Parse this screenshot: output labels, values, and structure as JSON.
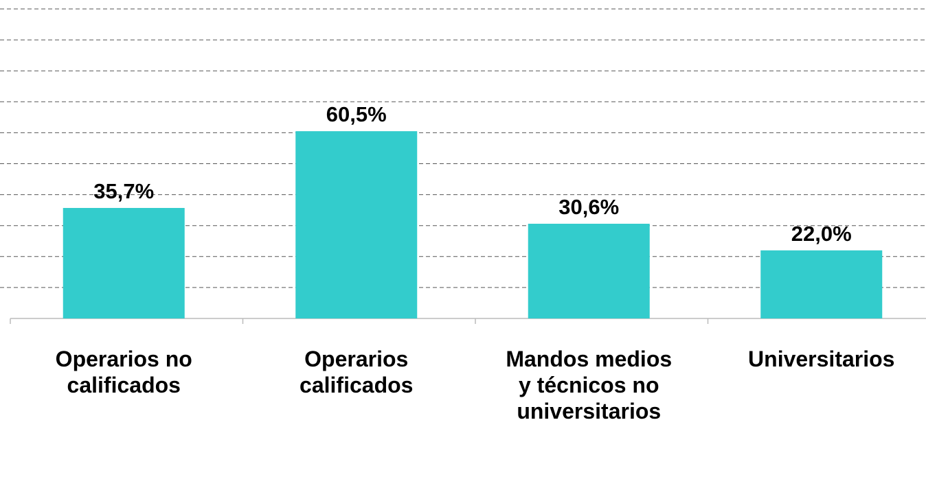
{
  "chart_data": {
    "type": "bar",
    "categories": [
      "Operarios no calificados",
      "Operarios calificados",
      "Mandos medios y técnicos no universitarios",
      "Universitarios"
    ],
    "values": [
      35.7,
      60.5,
      30.6,
      22.0
    ],
    "value_labels": [
      "35,7%",
      "60,5%",
      "30,6%",
      "22,0%"
    ],
    "color": "#33cccc",
    "ylim": [
      0,
      100
    ],
    "yticks": [
      0,
      10,
      20,
      30,
      40,
      50,
      60,
      70,
      80,
      90,
      100
    ],
    "grid": true
  }
}
